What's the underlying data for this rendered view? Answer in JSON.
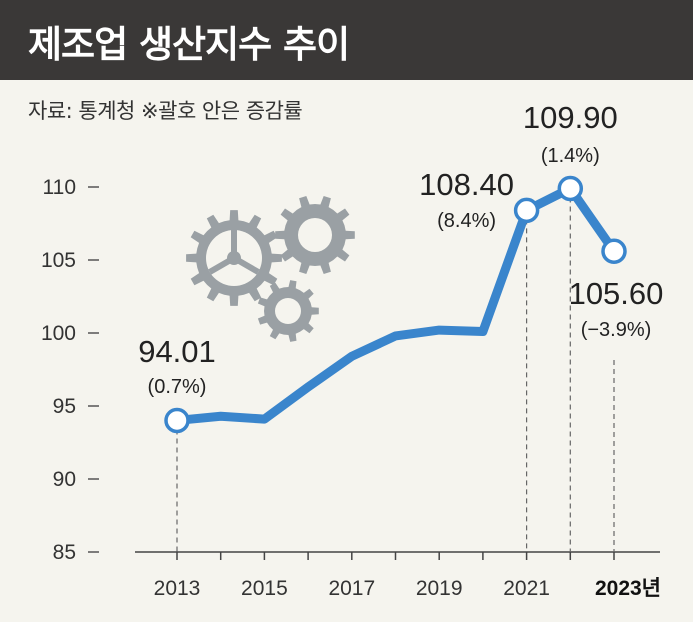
{
  "header": {
    "title": "제조업 생산지수 추이",
    "source": "자료: 통계청  ※괄호 안은 증감률"
  },
  "colors": {
    "line": "#3a85cc",
    "title_bg": "#3a3837",
    "background": "#f5f4ee",
    "gear": "#9aa0a4"
  },
  "chart_data": {
    "type": "line",
    "title": "제조업 생산지수 추이",
    "xlabel": "",
    "ylabel": "",
    "ylim": [
      85,
      110
    ],
    "yticks": [
      "85",
      "90",
      "95",
      "100",
      "105",
      "110"
    ],
    "xticks": [
      "2013",
      "2015",
      "2017",
      "2019",
      "2021",
      "2023년"
    ],
    "grid": false,
    "series": [
      {
        "x": [
          2013,
          2014,
          2015,
          2016,
          2017,
          2018,
          2019,
          2020,
          2021,
          2022,
          2023
        ],
        "values": [
          94.01,
          94.3,
          94.1,
          96.3,
          98.4,
          99.8,
          100.2,
          100.1,
          108.4,
          109.9,
          105.6
        ]
      }
    ],
    "annotations": [
      {
        "x": 2013,
        "value": "94.01",
        "pct": "(0.7%)"
      },
      {
        "x": 2021,
        "value": "108.40",
        "pct": "(8.4%)"
      },
      {
        "x": 2022,
        "value": "109.90",
        "pct": "(1.4%)"
      },
      {
        "x": 2023,
        "value": "105.60",
        "pct": "(−3.9%)"
      }
    ]
  }
}
